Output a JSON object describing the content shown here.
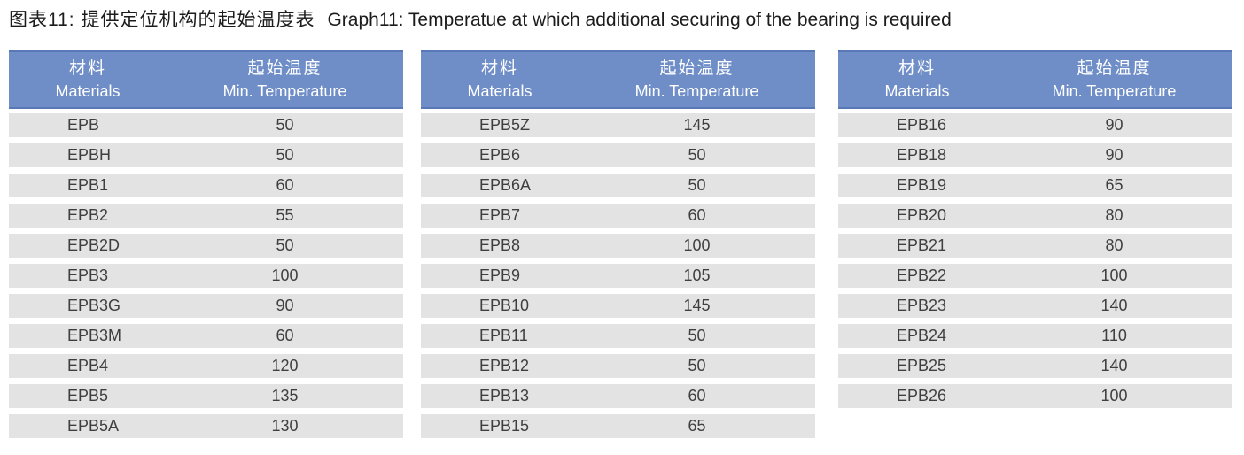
{
  "title": {
    "zh": "图表11:  提供定位机构的起始温度表",
    "en": "Graph11: Temperatue at which additional securing of the bearing is required"
  },
  "columns": {
    "material": {
      "zh": "材料",
      "en": "Materials"
    },
    "temperature": {
      "zh": "起始温度",
      "en": "Min. Temperature"
    }
  },
  "tables": [
    {
      "rows": [
        {
          "material": "EPB",
          "temperature": 50
        },
        {
          "material": "EPBH",
          "temperature": 50
        },
        {
          "material": "EPB1",
          "temperature": 60
        },
        {
          "material": "EPB2",
          "temperature": 55
        },
        {
          "material": "EPB2D",
          "temperature": 50
        },
        {
          "material": "EPB3",
          "temperature": 100
        },
        {
          "material": "EPB3G",
          "temperature": 90
        },
        {
          "material": "EPB3M",
          "temperature": 60
        },
        {
          "material": "EPB4",
          "temperature": 120
        },
        {
          "material": "EPB5",
          "temperature": 135
        },
        {
          "material": "EPB5A",
          "temperature": 130
        }
      ]
    },
    {
      "rows": [
        {
          "material": "EPB5Z",
          "temperature": 145
        },
        {
          "material": "EPB6",
          "temperature": 50
        },
        {
          "material": "EPB6A",
          "temperature": 50
        },
        {
          "material": "EPB7",
          "temperature": 60
        },
        {
          "material": "EPB8",
          "temperature": 100
        },
        {
          "material": "EPB9",
          "temperature": 105
        },
        {
          "material": "EPB10",
          "temperature": 145
        },
        {
          "material": "EPB11",
          "temperature": 50
        },
        {
          "material": "EPB12",
          "temperature": 50
        },
        {
          "material": "EPB13",
          "temperature": 60
        },
        {
          "material": "EPB15",
          "temperature": 65
        }
      ]
    },
    {
      "rows": [
        {
          "material": "EPB16",
          "temperature": 90
        },
        {
          "material": "EPB18",
          "temperature": 90
        },
        {
          "material": "EPB19",
          "temperature": 65
        },
        {
          "material": "EPB20",
          "temperature": 80
        },
        {
          "material": "EPB21",
          "temperature": 80
        },
        {
          "material": "EPB22",
          "temperature": 100
        },
        {
          "material": "EPB23",
          "temperature": 140
        },
        {
          "material": "EPB24",
          "temperature": 110
        },
        {
          "material": "EPB25",
          "temperature": 140
        },
        {
          "material": "EPB26",
          "temperature": 100
        }
      ]
    }
  ],
  "colors": {
    "header_bg": "#6F8EC7",
    "header_border": "#5878B6",
    "header_text": "#FFFFFF",
    "row_bg": "#E3E3E3",
    "row_text": "#3F3F3F",
    "title_text": "#1C1C1C"
  }
}
